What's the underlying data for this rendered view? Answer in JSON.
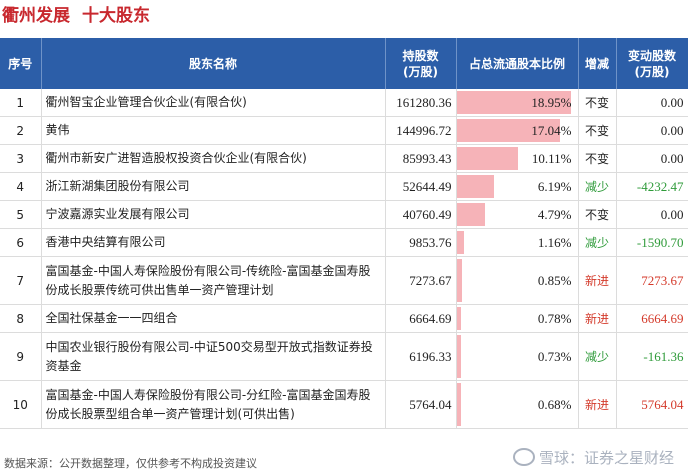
{
  "title": "衢州发展",
  "subtitle": "十大股东",
  "headers": {
    "seq": "序号",
    "name": "股东名称",
    "shares": "持股数\n(万股)",
    "ratio": "占总流通股本比例",
    "change": "增减",
    "delta": "变动股数\n(万股)"
  },
  "rows": [
    {
      "seq": "1",
      "name": "衢州智宝企业管理合伙企业(有限合伙)",
      "shares": "161280.36",
      "ratio": "18.95%",
      "ratio_value": 18.95,
      "change": "不变",
      "delta": "0.00"
    },
    {
      "seq": "2",
      "name": "黄伟",
      "shares": "144996.72",
      "ratio": "17.04%",
      "ratio_value": 17.04,
      "change": "不变",
      "delta": "0.00"
    },
    {
      "seq": "3",
      "name": "衢州市新安广进智造股权投资合伙企业(有限合伙)",
      "shares": "85993.43",
      "ratio": "10.11%",
      "ratio_value": 10.11,
      "change": "不变",
      "delta": "0.00"
    },
    {
      "seq": "4",
      "name": "浙江新湖集团股份有限公司",
      "shares": "52644.49",
      "ratio": "6.19%",
      "ratio_value": 6.19,
      "change": "减少",
      "delta": "-4232.47"
    },
    {
      "seq": "5",
      "name": "宁波嘉源实业发展有限公司",
      "shares": "40760.49",
      "ratio": "4.79%",
      "ratio_value": 4.79,
      "change": "不变",
      "delta": "0.00"
    },
    {
      "seq": "6",
      "name": "香港中央结算有限公司",
      "shares": "9853.76",
      "ratio": "1.16%",
      "ratio_value": 1.16,
      "change": "减少",
      "delta": "-1590.70"
    },
    {
      "seq": "7",
      "name": "富国基金-中国人寿保险股份有限公司-传统险-富国基金国寿股份成长股票传统可供出售单一资产管理计划",
      "shares": "7273.67",
      "ratio": "0.85%",
      "ratio_value": 0.85,
      "change": "新进",
      "delta": "7273.67"
    },
    {
      "seq": "8",
      "name": "全国社保基金一一四组合",
      "shares": "6664.69",
      "ratio": "0.78%",
      "ratio_value": 0.78,
      "change": "新进",
      "delta": "6664.69"
    },
    {
      "seq": "9",
      "name": "中国农业银行股份有限公司-中证500交易型开放式指数证券投资基金",
      "shares": "6196.33",
      "ratio": "0.73%",
      "ratio_value": 0.73,
      "change": "减少",
      "delta": "-161.36"
    },
    {
      "seq": "10",
      "name": "富国基金-中国人寿保险股份有限公司-分红险-富国基金国寿股份成长股票型组合单一资产管理计划(可供出售)",
      "shares": "5764.04",
      "ratio": "0.68%",
      "ratio_value": 0.68,
      "change": "新进",
      "delta": "5764.04"
    }
  ],
  "ratio_scale_max": 20,
  "footer": "数据来源：公开数据整理，仅供参考不构成投资建议",
  "watermark": "雪球：证券之星财经",
  "colors": {
    "title": "#c8282e",
    "header_bg": "#2c5ea8",
    "bar": "#f6b3b8",
    "increase": "#d43a2b",
    "decrease": "#2f9b3a"
  }
}
